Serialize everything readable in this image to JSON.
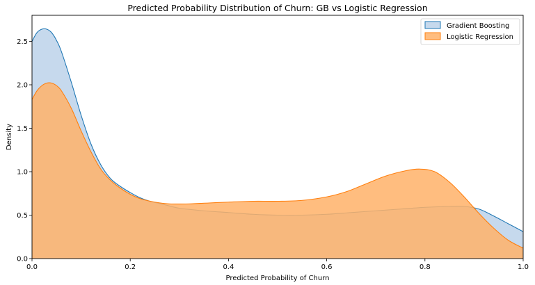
{
  "chart_data": {
    "type": "area",
    "title": "Predicted Probability Distribution of Churn: GB vs Logistic Regression",
    "xlabel": "Predicted Probability of Churn",
    "ylabel": "Density",
    "xlim": [
      0.0,
      1.0
    ],
    "ylim": [
      0.0,
      2.8
    ],
    "xticks": [
      "0.0",
      "0.2",
      "0.4",
      "0.6",
      "0.8",
      "1.0"
    ],
    "yticks": [
      "0.0",
      "0.5",
      "1.0",
      "1.5",
      "2.0",
      "2.5"
    ],
    "legend_position": "top-right",
    "grid": false,
    "series": [
      {
        "name": "Gradient Boosting",
        "fill": "#aec9e5",
        "stroke": "#1f77b4",
        "x": [
          0.0,
          0.01,
          0.02,
          0.03,
          0.04,
          0.05,
          0.06,
          0.08,
          0.1,
          0.12,
          0.14,
          0.16,
          0.18,
          0.2,
          0.22,
          0.24,
          0.27,
          0.3,
          0.35,
          0.4,
          0.45,
          0.5,
          0.55,
          0.6,
          0.65,
          0.7,
          0.75,
          0.8,
          0.85,
          0.88,
          0.91,
          0.94,
          0.97,
          1.0
        ],
        "y": [
          2.5,
          2.6,
          2.64,
          2.64,
          2.6,
          2.51,
          2.38,
          2.03,
          1.65,
          1.32,
          1.08,
          0.92,
          0.83,
          0.76,
          0.7,
          0.66,
          0.62,
          0.58,
          0.55,
          0.53,
          0.51,
          0.5,
          0.5,
          0.51,
          0.53,
          0.55,
          0.57,
          0.59,
          0.6,
          0.6,
          0.57,
          0.49,
          0.4,
          0.31
        ]
      },
      {
        "name": "Logistic Regression",
        "fill": "#ffb169",
        "stroke": "#ff7f0e",
        "x": [
          0.0,
          0.01,
          0.02,
          0.03,
          0.04,
          0.05,
          0.06,
          0.08,
          0.1,
          0.12,
          0.14,
          0.16,
          0.18,
          0.2,
          0.22,
          0.25,
          0.28,
          0.32,
          0.36,
          0.4,
          0.45,
          0.5,
          0.55,
          0.6,
          0.64,
          0.68,
          0.72,
          0.76,
          0.79,
          0.82,
          0.85,
          0.88,
          0.91,
          0.94,
          0.97,
          1.0
        ],
        "y": [
          1.83,
          1.93,
          1.99,
          2.02,
          2.02,
          1.99,
          1.93,
          1.73,
          1.47,
          1.23,
          1.03,
          0.9,
          0.81,
          0.74,
          0.69,
          0.65,
          0.63,
          0.63,
          0.64,
          0.65,
          0.66,
          0.66,
          0.67,
          0.71,
          0.77,
          0.86,
          0.95,
          1.01,
          1.03,
          1.0,
          0.88,
          0.71,
          0.52,
          0.35,
          0.21,
          0.12
        ]
      }
    ]
  }
}
